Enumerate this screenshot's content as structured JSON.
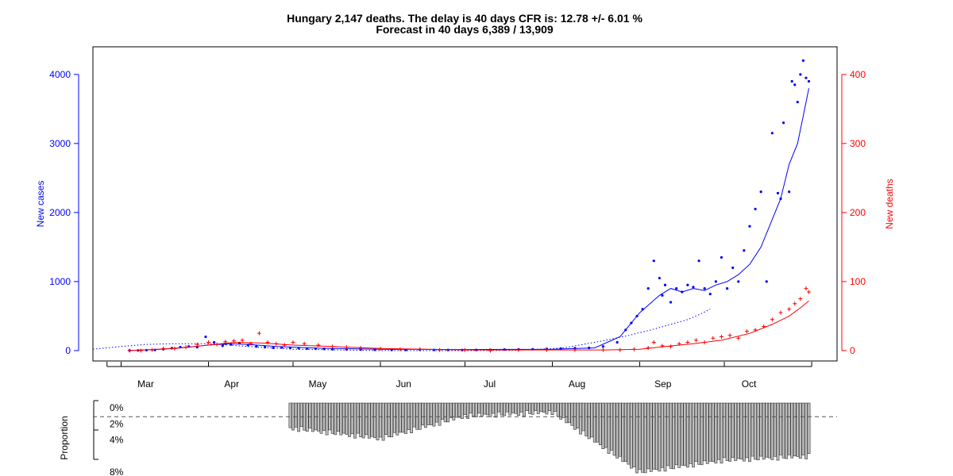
{
  "colors": {
    "cases": "#0000ff",
    "deaths": "#ff0000",
    "bars": "#bebebe",
    "axis": "#000000",
    "reference": "#555555"
  },
  "chart_data": [
    {
      "type": "scatter",
      "title": "Hungary 2,147 deaths. The delay is 40 days CFR is: 12.78 +/- 6.01 %",
      "subtitle": "Forecast in 40 days 6,389 / 13,909",
      "ylabel": "New cases",
      "ylabel_right": "New deaths",
      "ylim": [
        -150,
        4400
      ],
      "ylim_right": [
        -15,
        440
      ],
      "yticks": [
        0,
        1000,
        2000,
        3000,
        4000
      ],
      "yticks_right": [
        0,
        100,
        200,
        300,
        400
      ],
      "month_labels": [
        "Mar",
        "Apr",
        "May",
        "Jun",
        "Jul",
        "Aug",
        "Sep",
        "Oct"
      ],
      "x_start": "2020-02-20",
      "x_end": "2020-11-10",
      "series": [
        {
          "kind": "cases-points",
          "axis": "left",
          "x": [
            "2020-03-04",
            "2020-03-07",
            "2020-03-10",
            "2020-03-13",
            "2020-03-16",
            "2020-03-19",
            "2020-03-22",
            "2020-03-25",
            "2020-03-28",
            "2020-03-31",
            "2020-04-03",
            "2020-04-06",
            "2020-04-07",
            "2020-04-09",
            "2020-04-12",
            "2020-04-15",
            "2020-04-18",
            "2020-04-21",
            "2020-04-24",
            "2020-04-27",
            "2020-04-30",
            "2020-05-03",
            "2020-05-06",
            "2020-05-09",
            "2020-05-12",
            "2020-05-15",
            "2020-05-20",
            "2020-05-25",
            "2020-05-30",
            "2020-06-05",
            "2020-06-10",
            "2020-06-15",
            "2020-06-20",
            "2020-06-25",
            "2020-06-30",
            "2020-07-05",
            "2020-07-10",
            "2020-07-15",
            "2020-07-20",
            "2020-07-25",
            "2020-07-30",
            "2020-08-04",
            "2020-08-09",
            "2020-08-14",
            "2020-08-19",
            "2020-08-24",
            "2020-08-27",
            "2020-08-29",
            "2020-08-31",
            "2020-09-02",
            "2020-09-04",
            "2020-09-06",
            "2020-09-08",
            "2020-09-09",
            "2020-09-10",
            "2020-09-12",
            "2020-09-14",
            "2020-09-16",
            "2020-09-18",
            "2020-09-20",
            "2020-09-22",
            "2020-09-24",
            "2020-09-26",
            "2020-09-28",
            "2020-09-30",
            "2020-10-02",
            "2020-10-04",
            "2020-10-06",
            "2020-10-08",
            "2020-10-10",
            "2020-10-12",
            "2020-10-14",
            "2020-10-16",
            "2020-10-18",
            "2020-10-20",
            "2020-10-21",
            "2020-10-22",
            "2020-10-24",
            "2020-10-25",
            "2020-10-26",
            "2020-10-27",
            "2020-10-28",
            "2020-10-29",
            "2020-10-30",
            "2020-10-31"
          ],
          "y": [
            2,
            3,
            7,
            10,
            20,
            35,
            50,
            60,
            50,
            200,
            120,
            70,
            100,
            90,
            110,
            80,
            60,
            50,
            40,
            45,
            40,
            35,
            30,
            28,
            25,
            20,
            18,
            15,
            12,
            10,
            10,
            12,
            10,
            9,
            8,
            10,
            12,
            15,
            18,
            20,
            25,
            30,
            35,
            40,
            60,
            120,
            300,
            400,
            500,
            600,
            900,
            1300,
            1050,
            800,
            950,
            700,
            900,
            850,
            950,
            920,
            1300,
            900,
            820,
            1000,
            1350,
            900,
            1200,
            1000,
            1450,
            1800,
            2050,
            2300,
            1000,
            3150,
            2280,
            2200,
            3300,
            2300,
            3900,
            3850,
            3600,
            4000,
            4200,
            3950,
            3900
          ]
        },
        {
          "kind": "cases-smooth",
          "axis": "left",
          "x": [
            "2020-03-04",
            "2020-03-15",
            "2020-03-25",
            "2020-04-01",
            "2020-04-08",
            "2020-04-15",
            "2020-04-25",
            "2020-05-10",
            "2020-06-01",
            "2020-07-01",
            "2020-08-01",
            "2020-08-16",
            "2020-08-25",
            "2020-09-01",
            "2020-09-08",
            "2020-09-12",
            "2020-09-16",
            "2020-09-20",
            "2020-09-24",
            "2020-09-28",
            "2020-10-02",
            "2020-10-06",
            "2020-10-10",
            "2020-10-14",
            "2020-10-18",
            "2020-10-21",
            "2020-10-24",
            "2020-10-27",
            "2020-10-30",
            "2020-10-31"
          ],
          "y": [
            0,
            20,
            50,
            80,
            100,
            90,
            60,
            35,
            20,
            15,
            20,
            40,
            200,
            550,
            800,
            900,
            850,
            900,
            870,
            950,
            1000,
            1100,
            1250,
            1500,
            1900,
            2200,
            2700,
            3000,
            3600,
            3800
          ]
        },
        {
          "kind": "cases-expected",
          "axis": "left",
          "x": [
            "2020-02-20",
            "2020-03-01",
            "2020-03-10",
            "2020-03-20",
            "2020-04-01",
            "2020-04-15",
            "2020-05-01",
            "2020-06-01",
            "2020-07-01",
            "2020-07-20",
            "2020-08-05",
            "2020-08-20",
            "2020-08-28",
            "2020-09-05",
            "2020-09-12",
            "2020-09-18",
            "2020-09-22",
            "2020-09-26"
          ],
          "y": [
            20,
            60,
            90,
            100,
            100,
            60,
            20,
            0,
            0,
            5,
            40,
            150,
            220,
            300,
            380,
            450,
            520,
            600
          ]
        },
        {
          "kind": "deaths-points",
          "axis": "right",
          "x": [
            "2020-03-04",
            "2020-03-08",
            "2020-03-12",
            "2020-03-16",
            "2020-03-20",
            "2020-03-24",
            "2020-03-28",
            "2020-04-01",
            "2020-04-04",
            "2020-04-07",
            "2020-04-10",
            "2020-04-13",
            "2020-04-16",
            "2020-04-19",
            "2020-04-22",
            "2020-04-25",
            "2020-04-28",
            "2020-05-01",
            "2020-05-05",
            "2020-05-10",
            "2020-05-15",
            "2020-05-20",
            "2020-05-25",
            "2020-06-01",
            "2020-06-08",
            "2020-06-15",
            "2020-06-22",
            "2020-07-01",
            "2020-07-10",
            "2020-07-20",
            "2020-07-30",
            "2020-08-09",
            "2020-08-19",
            "2020-08-25",
            "2020-08-30",
            "2020-09-04",
            "2020-09-06",
            "2020-09-09",
            "2020-09-12",
            "2020-09-15",
            "2020-09-18",
            "2020-09-21",
            "2020-09-24",
            "2020-09-27",
            "2020-09-30",
            "2020-10-03",
            "2020-10-06",
            "2020-10-09",
            "2020-10-12",
            "2020-10-15",
            "2020-10-18",
            "2020-10-21",
            "2020-10-24",
            "2020-10-26",
            "2020-10-28",
            "2020-10-30",
            "2020-10-31"
          ],
          "y": [
            0,
            0,
            1,
            3,
            3,
            5,
            9,
            12,
            9,
            13,
            14,
            15,
            10,
            25,
            12,
            10,
            8,
            12,
            10,
            8,
            6,
            5,
            4,
            3,
            2,
            2,
            1,
            1,
            0,
            1,
            1,
            1,
            1,
            1,
            2,
            4,
            12,
            7,
            6,
            10,
            12,
            15,
            12,
            18,
            20,
            22,
            18,
            28,
            30,
            35,
            45,
            55,
            60,
            68,
            75,
            90,
            85
          ]
        },
        {
          "kind": "deaths-smooth",
          "axis": "right",
          "x": [
            "2020-03-04",
            "2020-03-20",
            "2020-04-01",
            "2020-04-10",
            "2020-04-20",
            "2020-05-01",
            "2020-05-15",
            "2020-06-01",
            "2020-07-01",
            "2020-08-01",
            "2020-08-20",
            "2020-09-01",
            "2020-09-10",
            "2020-09-20",
            "2020-09-30",
            "2020-10-10",
            "2020-10-18",
            "2020-10-24",
            "2020-10-28",
            "2020-10-31"
          ],
          "y": [
            0,
            3,
            8,
            12,
            11,
            8,
            6,
            3,
            1,
            1,
            1,
            2,
            6,
            10,
            15,
            25,
            38,
            50,
            62,
            72
          ]
        }
      ]
    },
    {
      "type": "bar",
      "ylabel": "Proportion",
      "yticks": [
        "0%",
        "2%",
        "4%",
        "8%"
      ],
      "ylim": [
        -1,
        8.5
      ],
      "reference_line": 1.1,
      "categories": [
        "2020-03-01",
        "2020-06-01",
        "2020-07-01",
        "2020-08-01",
        "2020-09-01",
        "2020-10-01",
        "2020-10-31"
      ],
      "values": [
        0,
        3.8,
        1.0,
        0.5,
        8.0,
        6.5,
        6.0
      ]
    }
  ]
}
